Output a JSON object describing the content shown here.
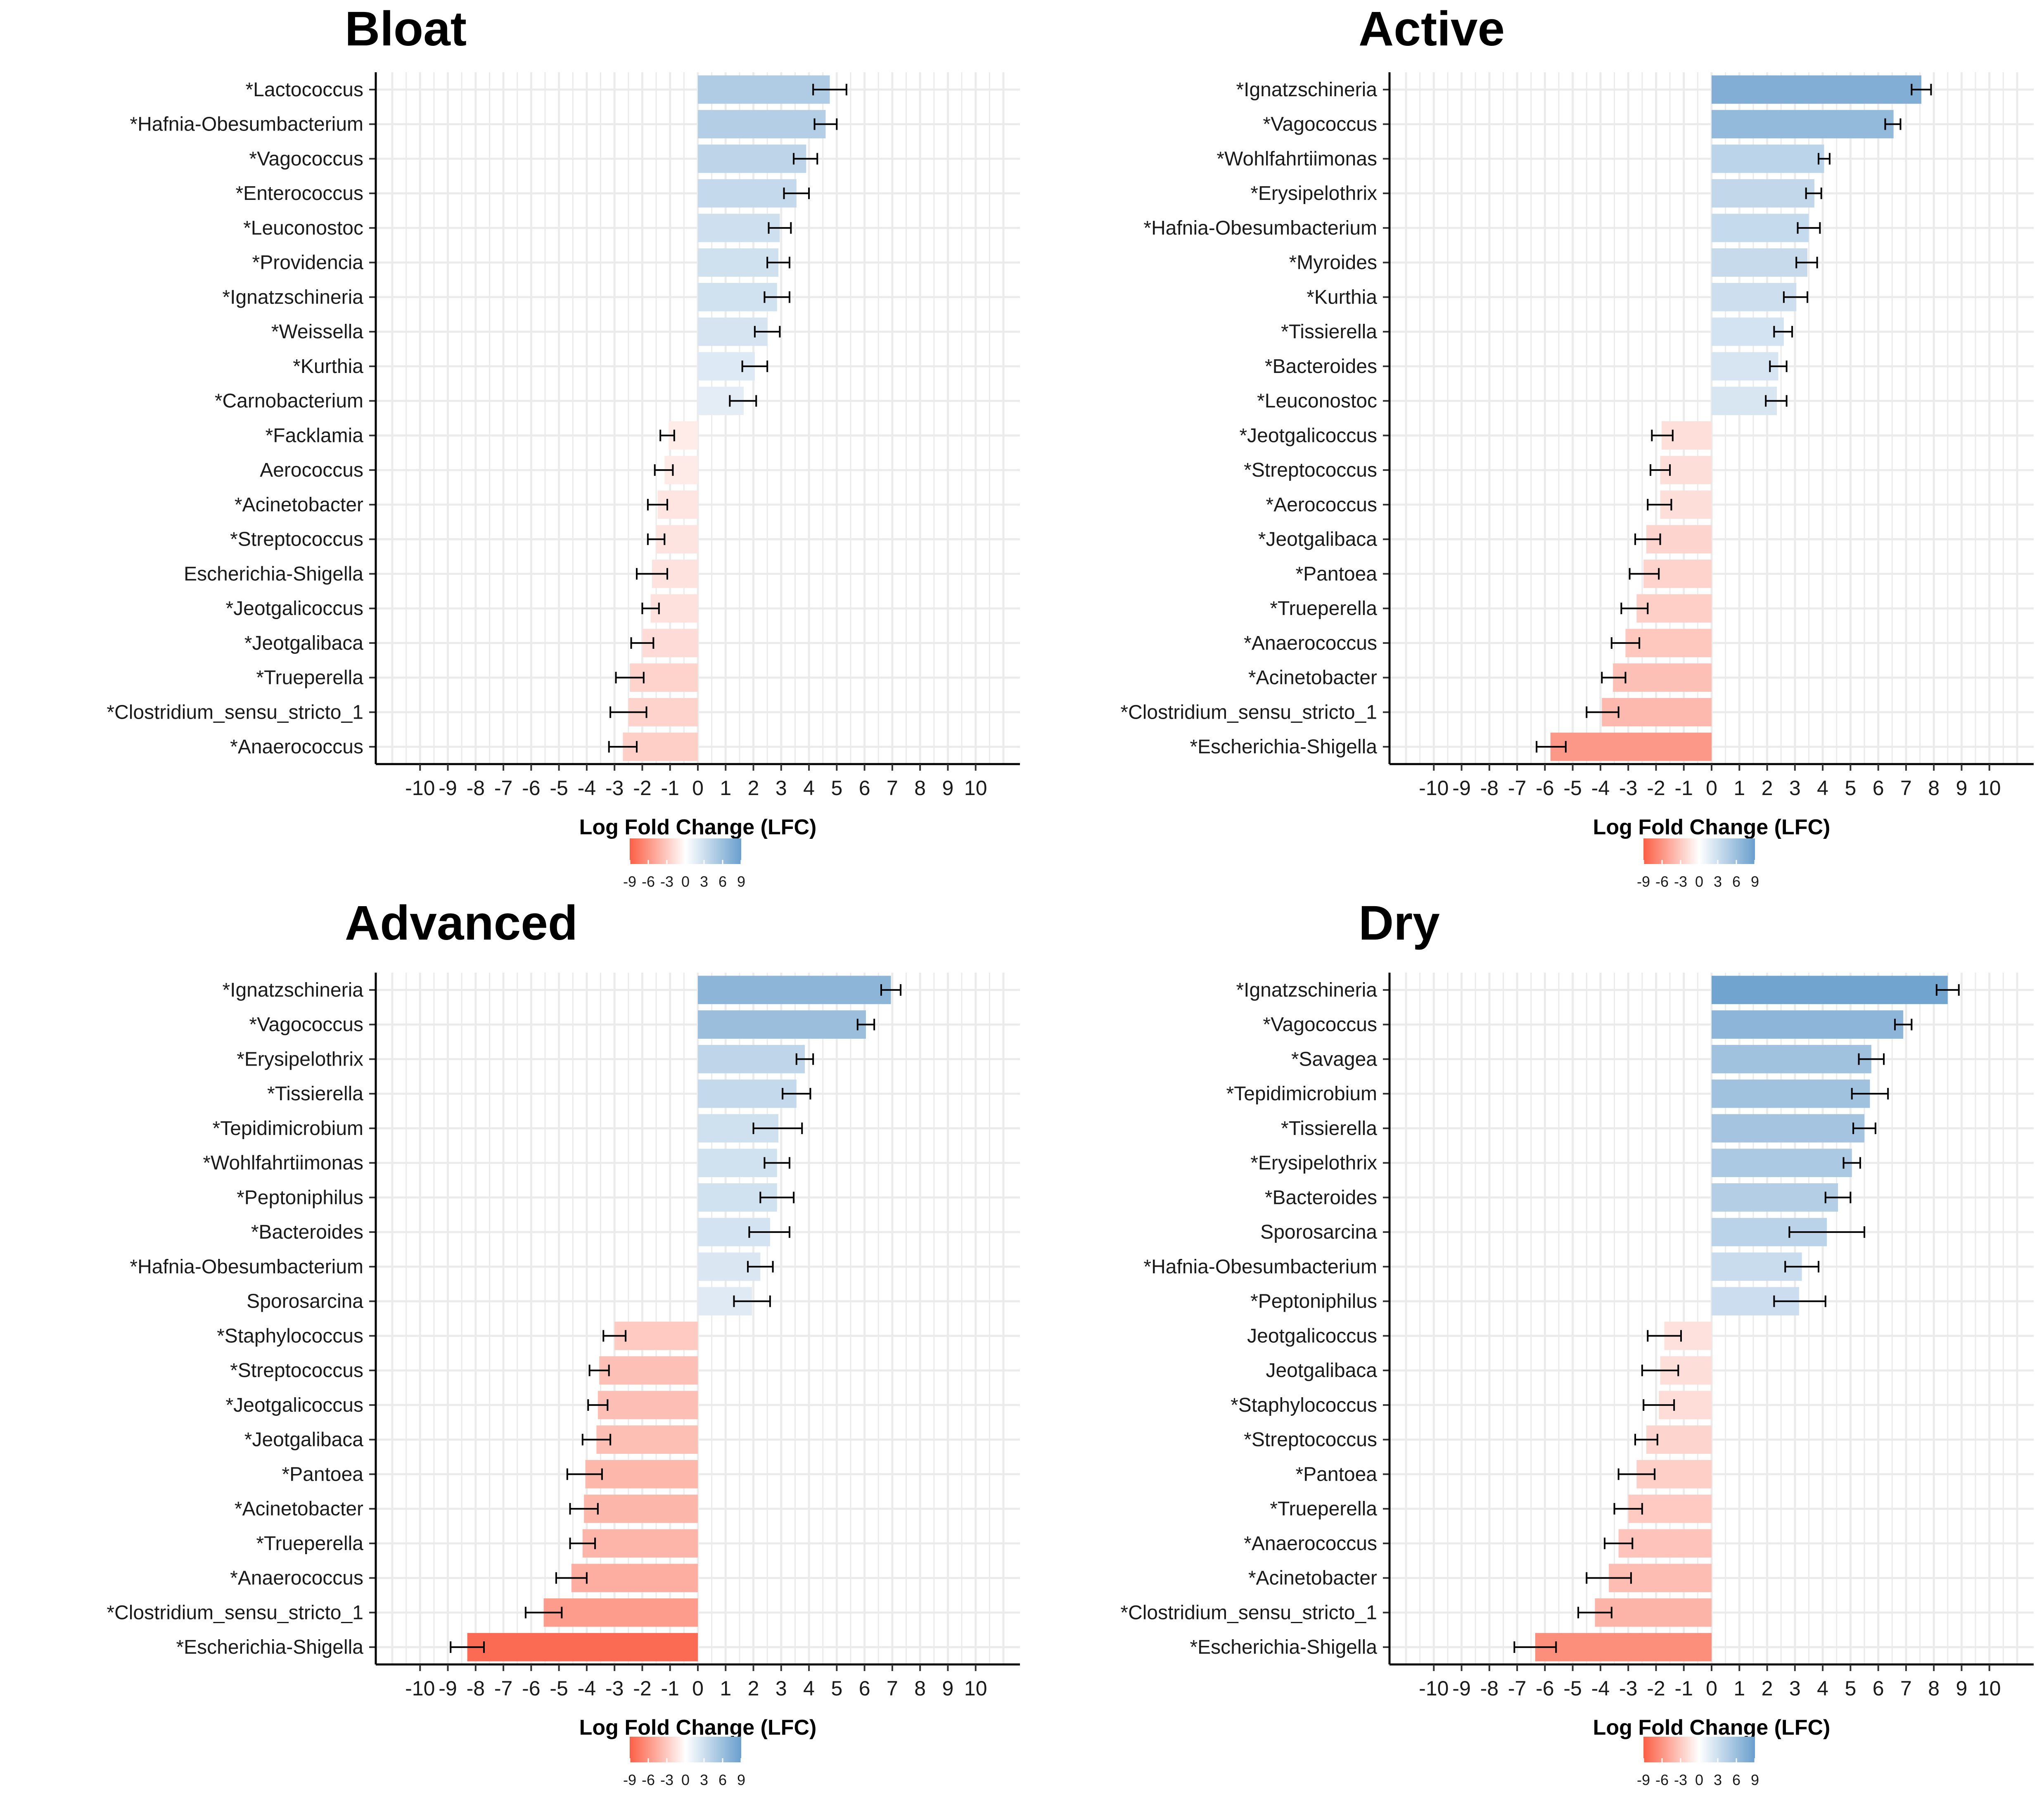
{
  "figure": {
    "color_scale": {
      "low": "#FB5F45",
      "mid": "#FFFFFF",
      "high": "#6A9FCD",
      "limits": [
        -9,
        9
      ]
    }
  },
  "chart_data": [
    {
      "type": "bar",
      "orientation": "horizontal",
      "title": "Bloat",
      "xlabel": "Log Fold Change (LFC)",
      "xlim": [
        -11,
        11
      ],
      "xticks": [
        "-10",
        "-9",
        "-8",
        "-7",
        "-6",
        "-5",
        "-4",
        "-3",
        "-2",
        "-1",
        "0",
        "1",
        "2",
        "3",
        "4",
        "5",
        "6",
        "7",
        "8",
        "9",
        "10"
      ],
      "grid": true,
      "legend": {
        "position": "bottom",
        "ticks": [
          "-9",
          "-6",
          "-3",
          "0",
          "3",
          "6",
          "9"
        ]
      },
      "categories": [
        "*Lactococcus",
        "*Hafnia-Obesumbacterium",
        "*Vagococcus",
        "*Enterococcus",
        "*Leuconostoc",
        "*Providencia",
        "*Ignatzschineria",
        "*Weissella",
        "*Kurthia",
        "*Carnobacterium",
        "*Facklamia",
        "Aerococcus",
        "*Acinetobacter",
        "*Streptococcus",
        "Escherichia-Shigella",
        "*Jeotgalicoccus",
        "*Jeotgalibaca",
        "*Trueperella",
        "*Clostridium_sensu_stricto_1",
        "*Anaerococcus"
      ],
      "values": [
        4.75,
        4.6,
        3.9,
        3.55,
        2.95,
        2.9,
        2.85,
        2.5,
        2.05,
        1.65,
        -1.05,
        -1.2,
        -1.45,
        -1.5,
        -1.65,
        -1.7,
        -2.0,
        -2.45,
        -2.5,
        -2.7
      ],
      "err_low": [
        4.15,
        4.2,
        3.45,
        3.1,
        2.55,
        2.5,
        2.4,
        2.05,
        1.6,
        1.15,
        -1.35,
        -1.55,
        -1.8,
        -1.8,
        -2.2,
        -2.0,
        -2.4,
        -2.95,
        -3.15,
        -3.2
      ],
      "err_high": [
        5.35,
        5.0,
        4.3,
        4.0,
        3.35,
        3.3,
        3.3,
        2.95,
        2.5,
        2.1,
        -0.85,
        -0.9,
        -1.1,
        -1.2,
        -1.1,
        -1.4,
        -1.6,
        -1.95,
        -1.85,
        -2.2
      ]
    },
    {
      "type": "bar",
      "orientation": "horizontal",
      "title": "Active",
      "xlabel": "Log Fold Change (LFC)",
      "xlim": [
        -11,
        11
      ],
      "xticks": [
        "-10",
        "-9",
        "-8",
        "-7",
        "-6",
        "-5",
        "-4",
        "-3",
        "-2",
        "-1",
        "0",
        "1",
        "2",
        "3",
        "4",
        "5",
        "6",
        "7",
        "8",
        "9",
        "10"
      ],
      "grid": true,
      "legend": {
        "position": "bottom",
        "ticks": [
          "-9",
          "-6",
          "-3",
          "0",
          "3",
          "6",
          "9"
        ]
      },
      "categories": [
        "*Ignatzschineria",
        "*Vagococcus",
        "*Wohlfahrtiimonas",
        "*Erysipelothrix",
        "*Hafnia-Obesumbacterium",
        "*Myroides",
        "*Kurthia",
        "*Tissierella",
        "*Bacteroides",
        "*Leuconostoc",
        "*Jeotgalicoccus",
        "*Streptococcus",
        "*Aerococcus",
        "*Jeotgalibaca",
        "*Pantoea",
        "*Trueperella",
        "*Anaerococcus",
        "*Acinetobacter",
        "*Clostridium_sensu_stricto_1",
        "*Escherichia-Shigella"
      ],
      "values": [
        7.55,
        6.55,
        4.05,
        3.7,
        3.5,
        3.45,
        3.05,
        2.6,
        2.4,
        2.35,
        -1.8,
        -1.85,
        -1.85,
        -2.35,
        -2.45,
        -2.7,
        -3.1,
        -3.55,
        -3.95,
        -5.8
      ],
      "err_low": [
        7.2,
        6.25,
        3.85,
        3.4,
        3.1,
        3.05,
        2.6,
        2.25,
        2.1,
        1.95,
        -2.15,
        -2.2,
        -2.3,
        -2.75,
        -2.95,
        -3.25,
        -3.6,
        -3.95,
        -4.5,
        -6.3
      ],
      "err_high": [
        7.9,
        6.8,
        4.25,
        3.95,
        3.9,
        3.8,
        3.45,
        2.9,
        2.7,
        2.7,
        -1.4,
        -1.5,
        -1.45,
        -1.85,
        -1.9,
        -2.3,
        -2.6,
        -3.1,
        -3.35,
        -5.25
      ]
    },
    {
      "type": "bar",
      "orientation": "horizontal",
      "title": "Advanced",
      "xlabel": "Log Fold Change (LFC)",
      "xlim": [
        -11,
        11
      ],
      "xticks": [
        "-10",
        "-9",
        "-8",
        "-7",
        "-6",
        "-5",
        "-4",
        "-3",
        "-2",
        "-1",
        "0",
        "1",
        "2",
        "3",
        "4",
        "5",
        "6",
        "7",
        "8",
        "9",
        "10"
      ],
      "grid": true,
      "legend": {
        "position": "bottom",
        "ticks": [
          "-9",
          "-6",
          "-3",
          "0",
          "3",
          "6",
          "9"
        ]
      },
      "categories": [
        "*Ignatzschineria",
        "*Vagococcus",
        "*Erysipelothrix",
        "*Tissierella",
        "*Tepidimicrobium",
        "*Wohlfahrtiimonas",
        "*Peptoniphilus",
        "*Bacteroides",
        "*Hafnia-Obesumbacterium",
        "Sporosarcina",
        "*Staphylococcus",
        "*Streptococcus",
        "*Jeotgalicoccus",
        "*Jeotgalibaca",
        "*Pantoea",
        "*Acinetobacter",
        "*Trueperella",
        "*Anaerococcus",
        "*Clostridium_sensu_stricto_1",
        "*Escherichia-Shigella"
      ],
      "values": [
        6.95,
        6.05,
        3.85,
        3.55,
        2.9,
        2.85,
        2.85,
        2.6,
        2.25,
        1.95,
        -3.0,
        -3.55,
        -3.6,
        -3.65,
        -4.05,
        -4.1,
        -4.15,
        -4.55,
        -5.55,
        -8.3
      ],
      "err_low": [
        6.6,
        5.75,
        3.55,
        3.05,
        2.0,
        2.4,
        2.25,
        1.85,
        1.8,
        1.3,
        -3.4,
        -3.9,
        -3.95,
        -4.15,
        -4.7,
        -4.6,
        -4.6,
        -5.1,
        -6.2,
        -8.9
      ],
      "err_high": [
        7.3,
        6.35,
        4.15,
        4.05,
        3.75,
        3.3,
        3.45,
        3.3,
        2.7,
        2.6,
        -2.6,
        -3.2,
        -3.25,
        -3.15,
        -3.45,
        -3.6,
        -3.7,
        -4.0,
        -4.9,
        -7.7
      ]
    },
    {
      "type": "bar",
      "orientation": "horizontal",
      "title": "Dry",
      "xlabel": "Log Fold Change (LFC)",
      "xlim": [
        -11,
        11
      ],
      "xticks": [
        "-10",
        "-9",
        "-8",
        "-7",
        "-6",
        "-5",
        "-4",
        "-3",
        "-2",
        "-1",
        "0",
        "1",
        "2",
        "3",
        "4",
        "5",
        "6",
        "7",
        "8",
        "9",
        "10"
      ],
      "grid": true,
      "legend": {
        "position": "bottom",
        "ticks": [
          "-9",
          "-6",
          "-3",
          "0",
          "3",
          "6",
          "9"
        ]
      },
      "categories": [
        "*Ignatzschineria",
        "*Vagococcus",
        "*Savagea",
        "*Tepidimicrobium",
        "*Tissierella",
        "*Erysipelothrix",
        "*Bacteroides",
        "Sporosarcina",
        "*Hafnia-Obesumbacterium",
        "*Peptoniphilus",
        "Jeotgalicoccus",
        "Jeotgalibaca",
        "*Staphylococcus",
        "*Streptococcus",
        "*Pantoea",
        "*Trueperella",
        "*Anaerococcus",
        "*Acinetobacter",
        "*Clostridium_sensu_stricto_1",
        "*Escherichia-Shigella"
      ],
      "values": [
        8.5,
        6.9,
        5.75,
        5.7,
        5.5,
        5.05,
        4.55,
        4.15,
        3.25,
        3.15,
        -1.7,
        -1.85,
        -1.9,
        -2.35,
        -2.7,
        -3.0,
        -3.35,
        -3.7,
        -4.2,
        -6.35
      ],
      "err_low": [
        8.1,
        6.6,
        5.3,
        5.05,
        5.1,
        4.75,
        4.1,
        2.8,
        2.65,
        2.25,
        -2.3,
        -2.5,
        -2.45,
        -2.75,
        -3.35,
        -3.5,
        -3.85,
        -4.5,
        -4.8,
        -7.1
      ],
      "err_high": [
        8.9,
        7.2,
        6.2,
        6.35,
        5.9,
        5.35,
        5.0,
        5.5,
        3.85,
        4.1,
        -1.1,
        -1.2,
        -1.35,
        -1.95,
        -2.05,
        -2.5,
        -2.85,
        -2.9,
        -3.6,
        -5.6
      ]
    }
  ]
}
